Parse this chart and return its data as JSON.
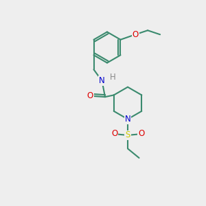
{
  "bg_color": "#eeeeee",
  "bond_color": "#3a8a6e",
  "bond_width": 1.5,
  "atom_colors": {
    "N": "#0000cc",
    "O": "#dd0000",
    "S": "#cccc00",
    "H": "#888888"
  },
  "font_size": 8.5,
  "figsize": [
    3.0,
    3.0
  ],
  "dpi": 100
}
